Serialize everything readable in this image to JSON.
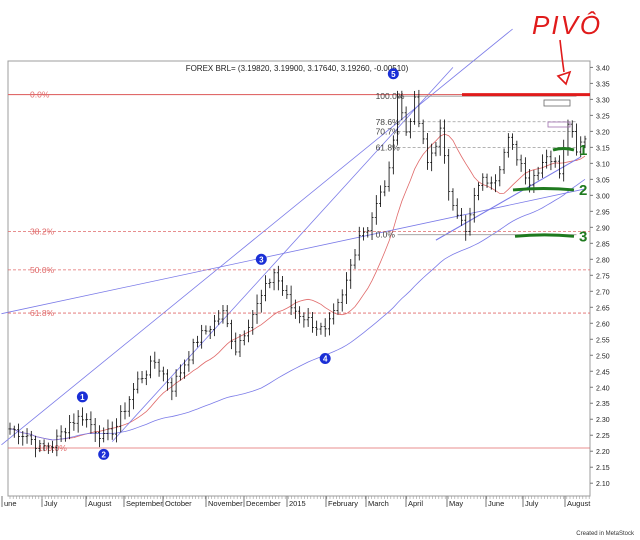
{
  "chart_data": {
    "type": "ohlc",
    "title": "FOREX BRL= (3.19820, 3.19900, 3.17640, 3.19260, -0.00510)",
    "footer": "Created in MetaStock",
    "annotation_text": "PIVÔ",
    "x_labels": [
      "une",
      "July",
      "August",
      "September",
      "October",
      "November",
      "December",
      "2015",
      "February",
      "March",
      "April",
      "May",
      "June",
      "July",
      "August"
    ],
    "y_ticks": [
      "3.40",
      "3.35",
      "3.30",
      "3.25",
      "3.20",
      "3.15",
      "3.10",
      "3.05",
      "3.00",
      "2.95",
      "2.90",
      "2.85",
      "2.80",
      "2.75",
      "2.70",
      "2.65",
      "2.60",
      "2.55",
      "2.50",
      "2.45",
      "2.40",
      "2.35",
      "2.30",
      "2.25",
      "2.20",
      "2.15",
      "2.10"
    ],
    "ylim": [
      2.06,
      3.42
    ],
    "price_path": [
      [
        0,
        2.27
      ],
      [
        4,
        2.25
      ],
      [
        7,
        2.21
      ],
      [
        10,
        2.22
      ],
      [
        14,
        2.29
      ],
      [
        17,
        2.31
      ],
      [
        20,
        2.27
      ],
      [
        22,
        2.24
      ],
      [
        25,
        2.28
      ],
      [
        30,
        2.42
      ],
      [
        34,
        2.48
      ],
      [
        38,
        2.4
      ],
      [
        44,
        2.55
      ],
      [
        50,
        2.63
      ],
      [
        53,
        2.52
      ],
      [
        57,
        2.63
      ],
      [
        62,
        2.76
      ],
      [
        66,
        2.65
      ],
      [
        70,
        2.61
      ],
      [
        74,
        2.57
      ],
      [
        78,
        2.68
      ],
      [
        82,
        2.88
      ],
      [
        84,
        2.9
      ],
      [
        89,
        3.07
      ],
      [
        91,
        3.31
      ],
      [
        93,
        3.2
      ],
      [
        95,
        3.29
      ],
      [
        98,
        3.1
      ],
      [
        101,
        3.2
      ],
      [
        103,
        3.02
      ],
      [
        107,
        2.88
      ],
      [
        110,
        3.04
      ],
      [
        114,
        3.06
      ],
      [
        117,
        3.17
      ],
      [
        120,
        3.1
      ],
      [
        122,
        3.04
      ],
      [
        126,
        3.13
      ],
      [
        129,
        3.08
      ],
      [
        131,
        3.24
      ],
      [
        133,
        3.15
      ],
      [
        135,
        3.19
      ]
    ],
    "n_bars": 136,
    "fib_retracement_long": [
      {
        "label": "0.0%",
        "value": 3.315
      },
      {
        "label": "38.2%",
        "value": 2.887
      },
      {
        "label": "50.0%",
        "value": 2.767
      },
      {
        "label": "61.8%",
        "value": 2.632
      },
      {
        "label": "100.0%",
        "value": 2.21
      }
    ],
    "fib_retracement_short": [
      {
        "label": "100.0%",
        "value": 3.31
      },
      {
        "label": "78.6%",
        "value": 3.23
      },
      {
        "label": "70.7%",
        "value": 3.2
      },
      {
        "label": "61.8%",
        "value": 3.15
      },
      {
        "label": "0.0%",
        "value": 2.877
      }
    ],
    "wave_labels": [
      {
        "label": "1",
        "bar": 17,
        "value": 2.37
      },
      {
        "label": "2",
        "bar": 22,
        "value": 2.19
      },
      {
        "label": "3",
        "bar": 59,
        "value": 2.8
      },
      {
        "label": "4",
        "bar": 74,
        "value": 2.49
      },
      {
        "label": "5",
        "bar": 90,
        "value": 3.38
      }
    ],
    "pivot_levels": [
      {
        "label": "1",
        "value": 3.145
      },
      {
        "label": "2",
        "value": 3.02
      },
      {
        "label": "3",
        "value": 2.875
      }
    ],
    "colors": {
      "price": "#000000",
      "channel": "#7b7be8",
      "moving_average": "#e06a6a",
      "fib": "#e06a6a",
      "fib_short": "#9a9a9a",
      "wave_badge": "#1a2fd6",
      "pivot_marks": "#1f7a1f",
      "pivot_red": "#e01b1b"
    }
  }
}
